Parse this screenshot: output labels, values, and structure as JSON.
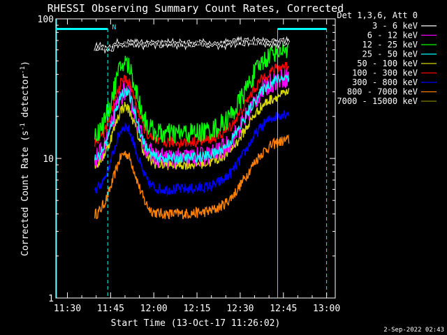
{
  "chart_data": {
    "type": "line",
    "title": "RHESSI Observing Summary Count Rates, Corrected",
    "xlabel": "Start Time (13-Oct-17 11:26:02)",
    "ylabel_main": "Corrected Count Rate (s",
    "ylabel_sup1": "-1",
    "ylabel_mid": " detector",
    "ylabel_sup2": "-1",
    "ylabel_end": ")",
    "yscale": "log",
    "ylim": [
      1,
      100
    ],
    "y_ticks": [
      {
        "value": 1,
        "label": "1"
      },
      {
        "value": 10,
        "label": "10"
      },
      {
        "value": 100,
        "label": "100"
      }
    ],
    "xlim_minutes": [
      0,
      97
    ],
    "x_ticks": [
      {
        "minute": 4,
        "label": "11:30"
      },
      {
        "minute": 19,
        "label": "11:45"
      },
      {
        "minute": 34,
        "label": "12:00"
      },
      {
        "minute": 49,
        "label": "12:15"
      },
      {
        "minute": 64,
        "label": "12:30"
      },
      {
        "minute": 79,
        "label": "12:45"
      },
      {
        "minute": 94,
        "label": "13:00"
      }
    ],
    "legend_header": "Det 1,3,6, Att 0",
    "series": [
      {
        "name": "3 - 6 keV",
        "color": "#000000",
        "peak": 70,
        "valley": 65
      },
      {
        "name": "6 - 12 keV",
        "color": "#ff00ff",
        "peak": 40,
        "valley": 10
      },
      {
        "name": "12 - 25 keV",
        "color": "#00ff00",
        "peak": 65,
        "valley": 15
      },
      {
        "name": "25 - 50 keV",
        "color": "#00ffff",
        "peak": 40,
        "valley": 10
      },
      {
        "name": "50 - 100 keV",
        "color": "#d9d900",
        "peak": 30,
        "valley": 9
      },
      {
        "name": "100 - 300 keV",
        "color": "#ff0000",
        "peak": 48,
        "valley": 13
      },
      {
        "name": "300 - 800 keV",
        "color": "#0000ff",
        "peak": 22,
        "valley": 6
      },
      {
        "name": "800 - 7000 keV",
        "color": "#ff8000",
        "peak": 14,
        "valley": 4
      },
      {
        "name": "7000 - 15000 keV",
        "color": "#808000",
        "peak": 1,
        "valley": 1
      }
    ],
    "markers": [
      {
        "minute": 18,
        "style": "dashed"
      },
      {
        "minute": 94,
        "style": "dashed"
      },
      {
        "minute": 77,
        "style": "solid"
      }
    ],
    "flag_labels": [
      {
        "minute": 19,
        "text": "N"
      }
    ],
    "footer_date": "2-Sep-2022 02:43"
  }
}
